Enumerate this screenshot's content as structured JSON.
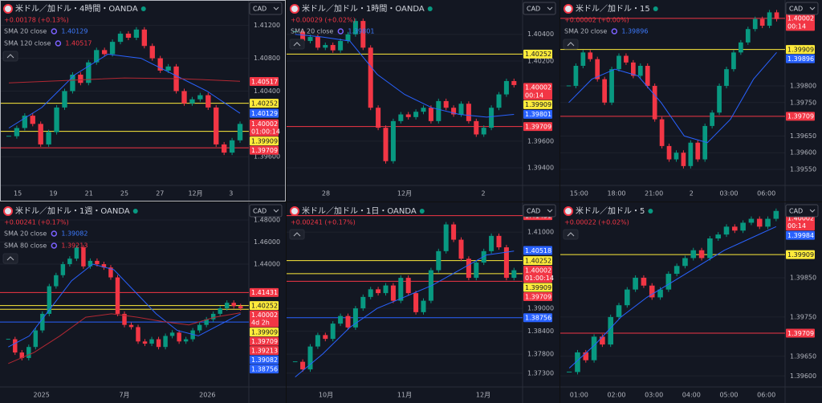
{
  "panels": [
    {
      "title": "米ドル／加ドル・4時間・OANDA",
      "change": "+0.00178 (+0.13%)",
      "currency": "CAD",
      "indicators": [
        {
          "name": "SMA 20 close",
          "value": "1.40129",
          "color": "#2962ff",
          "values": [
            1.3995,
            1.402,
            1.406,
            1.4085,
            1.408,
            1.406,
            1.404,
            1.4013
          ]
        },
        {
          "name": "SMA 120 close",
          "value": "1.40517",
          "color": "#b22833",
          "values": [
            1.405,
            1.4053,
            1.4056,
            1.4055,
            1.4052
          ]
        }
      ],
      "ylim": [
        1.3925,
        1.4151
      ],
      "yticks": [
        {
          "value": 1.412,
          "label": "1.41200"
        },
        {
          "value": 1.408,
          "label": "1.40800"
        },
        {
          "value": 1.404,
          "label": "1.40400"
        },
        {
          "value": 1.396,
          "label": "1.39600"
        }
      ],
      "time_labels": [
        "15",
        "19",
        "21",
        "25",
        "27",
        "12月",
        "3"
      ],
      "candles": [
        1.3985,
        1.3995,
        1.401,
        1.4,
        1.3975,
        1.399,
        1.402,
        1.404,
        1.406,
        1.405,
        1.4075,
        1.409,
        1.4085,
        1.41,
        1.411,
        1.4105,
        1.4115,
        1.4095,
        1.408,
        1.4065,
        1.407,
        1.404,
        1.4025,
        1.403,
        1.4035,
        1.402,
        1.3975,
        1.3965,
        1.398,
        1.4
      ],
      "tags": [
        {
          "value": 1.40517,
          "color": "#f23645"
        },
        {
          "value": 1.40252,
          "color": "#ffeb3b",
          "line": true
        },
        {
          "value": 1.40129,
          "color": "#2962ff"
        },
        {
          "value": 1.40002,
          "color": "#f23645",
          "countdown": "01:00:14"
        },
        {
          "value": 1.39909,
          "color": "#ffeb3b",
          "line": true
        },
        {
          "value": 1.39709,
          "color": "#f23645",
          "line": true
        }
      ]
    },
    {
      "title": "米ドル／加ドル・1時間・OANDA",
      "change": "+0.00029 (+0.02%)",
      "currency": "CAD",
      "indicators": [
        {
          "name": "SMA 20 close",
          "value": "1.39801",
          "color": "#2962ff",
          "values": [
            1.404,
            1.4038,
            1.4035,
            1.401,
            1.3995,
            1.3985,
            1.398,
            1.3978,
            1.398
          ]
        }
      ],
      "ylim": [
        1.39268,
        1.40657
      ],
      "yticks": [
        {
          "value": 1.404,
          "label": "1.40400"
        },
        {
          "value": 1.402,
          "label": "1.40200"
        },
        {
          "value": 1.396,
          "label": "1.39600"
        },
        {
          "value": 1.394,
          "label": "1.39400"
        }
      ],
      "time_labels": [
        "28",
        "12月",
        "2"
      ],
      "candles": [
        1.4042,
        1.4035,
        1.4038,
        1.403,
        1.4032,
        1.4028,
        1.4035,
        1.404,
        1.405,
        1.403,
        1.3985,
        1.397,
        1.3945,
        1.3975,
        1.398,
        1.3978,
        1.3982,
        1.3985,
        1.3975,
        1.399,
        1.3985,
        1.398,
        1.3988,
        1.3975,
        1.3965,
        1.397,
        1.3985,
        1.3995,
        1.4005,
        1.4002
      ],
      "tags": [
        {
          "value": 1.40252,
          "color": "#ffeb3b",
          "line": true
        },
        {
          "value": 1.40002,
          "color": "#f23645",
          "countdown": "00:14"
        },
        {
          "value": 1.39909,
          "color": "#ffeb3b"
        },
        {
          "value": 1.39801,
          "color": "#2962ff"
        },
        {
          "value": 1.39709,
          "color": "#f23645",
          "line": true
        }
      ]
    },
    {
      "title": "米ドル／加ドル・15",
      "change": "+0.00002 (+0.00%)",
      "currency": "CAD",
      "indicators": [
        {
          "name": "SMA 20 close",
          "value": "1.39896",
          "color": "#2962ff",
          "values": [
            1.3975,
            1.3982,
            1.3985,
            1.3983,
            1.3975,
            1.3965,
            1.3963,
            1.397,
            1.3982,
            1.399
          ]
        }
      ],
      "ylim": [
        1.39502,
        1.40057
      ],
      "yticks": [
        {
          "value": 1.398,
          "label": "1.39800"
        },
        {
          "value": 1.3975,
          "label": "1.39750"
        },
        {
          "value": 1.3965,
          "label": "1.39650"
        },
        {
          "value": 1.396,
          "label": "1.39600"
        },
        {
          "value": 1.3955,
          "label": "1.39550"
        }
      ],
      "time_labels": [
        "15:00",
        "18:00",
        "21:00",
        "2",
        "03:00",
        "06:00"
      ],
      "candles": [
        1.398,
        1.3986,
        1.399,
        1.3988,
        1.3982,
        1.3975,
        1.3985,
        1.3989,
        1.3987,
        1.3983,
        1.3986,
        1.398,
        1.397,
        1.3962,
        1.3958,
        1.396,
        1.3956,
        1.3963,
        1.3958,
        1.3968,
        1.3972,
        1.398,
        1.3985,
        1.399,
        1.3993,
        1.3997,
        1.4,
        1.3998,
        1.4002,
        1.4
      ],
      "tags": [
        {
          "value": 1.40002,
          "color": "#f23645",
          "countdown": "00:14",
          "line": true
        },
        {
          "value": 1.39909,
          "color": "#ffeb3b",
          "line": true
        },
        {
          "value": 1.39896,
          "color": "#2962ff"
        },
        {
          "value": 1.39709,
          "color": "#f23645",
          "line": true
        }
      ]
    },
    {
      "title": "米ドル／加ドル・1週・OANDA",
      "change": "+0.00241 (+0.17%)",
      "currency": "CAD",
      "indicators": [
        {
          "name": "SMA 20 close",
          "value": "1.39082",
          "color": "#2962ff",
          "values": [
            1.365,
            1.375,
            1.4,
            1.425,
            1.44,
            1.435,
            1.415,
            1.395,
            1.38,
            1.375,
            1.385,
            1.395
          ]
        },
        {
          "name": "SMA 80 close",
          "value": "1.39213",
          "color": "#b22833",
          "values": [
            1.35,
            1.36,
            1.375,
            1.392,
            1.395,
            1.392,
            1.388,
            1.385,
            1.392,
            1.396
          ]
        }
      ],
      "ylim": [
        1.3288,
        1.496
      ],
      "yticks": [
        {
          "value": 1.48,
          "label": "1.48000"
        },
        {
          "value": 1.46,
          "label": "1.46000"
        },
        {
          "value": 1.44,
          "label": "1.44000"
        }
      ],
      "time_labels": [
        "2025",
        "7月",
        "2026"
      ],
      "candles": [
        1.372,
        1.36,
        1.355,
        1.365,
        1.38,
        1.395,
        1.42,
        1.43,
        1.44,
        1.445,
        1.455,
        1.438,
        1.443,
        1.44,
        1.437,
        1.428,
        1.395,
        1.385,
        1.383,
        1.37,
        1.368,
        1.372,
        1.365,
        1.375,
        1.378,
        1.37,
        1.372,
        1.38,
        1.385,
        1.39,
        1.395,
        1.4,
        1.405,
        1.402,
        1.4
      ],
      "tags": [
        {
          "value": 1.41431,
          "color": "#f23645",
          "line": true
        },
        {
          "value": 1.40252,
          "color": "#ffeb3b",
          "line": true
        },
        {
          "value": 1.40002,
          "color": "#f23645",
          "countdown": "4d 2h"
        },
        {
          "value": 1.39909,
          "color": "#ffeb3b",
          "line": true
        },
        {
          "value": 1.39709,
          "color": "#f23645"
        },
        {
          "value": 1.39213,
          "color": "#f23645"
        },
        {
          "value": 1.39082,
          "color": "#2962ff"
        },
        {
          "value": 1.38756,
          "color": "#2962ff",
          "line": true
        }
      ]
    },
    {
      "title": "米ドル／加ドル・1日・OANDA",
      "change": "+0.00241 (+0.17%)",
      "currency": "CAD",
      "indicators": [
        {
          "color": "#2962ff",
          "values": [
            1.372,
            1.378,
            1.385,
            1.39,
            1.393,
            1.396,
            1.4,
            1.404,
            1.405
          ]
        }
      ],
      "ylim": [
        1.3694,
        1.4178
      ],
      "yticks": [
        {
          "value": 1.41,
          "label": "1.41000"
        },
        {
          "value": 1.39,
          "label": "1.39000"
        },
        {
          "value": 1.384,
          "label": "1.38400"
        },
        {
          "value": 1.378,
          "label": "1.37800"
        },
        {
          "value": 1.373,
          "label": "1.37300"
        }
      ],
      "time_labels": [
        "10月",
        "11月",
        "12月"
      ],
      "candles": [
        1.376,
        1.374,
        1.38,
        1.383,
        1.382,
        1.386,
        1.388,
        1.385,
        1.39,
        1.393,
        1.395,
        1.394,
        1.396,
        1.392,
        1.398,
        1.394,
        1.389,
        1.392,
        1.4,
        1.405,
        1.412,
        1.408,
        1.403,
        1.398,
        1.402,
        1.405,
        1.409,
        1.406,
        1.398,
        1.4
      ],
      "tags": [
        {
          "value": 1.41431,
          "color": "#f23645",
          "line": true
        },
        {
          "value": 1.40518,
          "color": "#2962ff"
        },
        {
          "value": 1.40252,
          "color": "#ffeb3b",
          "line": true
        },
        {
          "value": 1.40002,
          "color": "#f23645",
          "countdown": "01:00:14"
        },
        {
          "value": 1.39909,
          "color": "#ffeb3b",
          "line": true
        },
        {
          "value": 1.39709,
          "color": "#f23645",
          "line": true
        },
        {
          "value": 1.38756,
          "color": "#2962ff",
          "line": true
        }
      ]
    },
    {
      "title": "米ドル／加ドル・5",
      "change": "+0.00022 (+0.02%)",
      "currency": "CAD",
      "indicators": [
        {
          "color": "#2962ff",
          "values": [
            1.3962,
            1.3968,
            1.3975,
            1.398,
            1.3984,
            1.3988,
            1.3992,
            1.3995,
            1.3998
          ]
        }
      ],
      "ylim": [
        1.39572,
        1.40042
      ],
      "yticks": [
        {
          "value": 1.3985,
          "label": "1.39850"
        },
        {
          "value": 1.3975,
          "label": "1.39750"
        },
        {
          "value": 1.3965,
          "label": "1.39650"
        },
        {
          "value": 1.396,
          "label": "1.39600"
        }
      ],
      "time_labels": [
        "01:00",
        "02:00",
        "03:00",
        "04:00",
        "05:00",
        "06:00"
      ],
      "candles": [
        1.3961,
        1.3966,
        1.3964,
        1.397,
        1.3968,
        1.3975,
        1.3978,
        1.3982,
        1.3985,
        1.3983,
        1.398,
        1.3982,
        1.3986,
        1.3988,
        1.399,
        1.3992,
        1.399,
        1.3995,
        1.3996,
        1.3998,
        1.3997,
        1.3999,
        1.4,
        1.3998,
        1.4,
        1.4002
      ],
      "tags": [
        {
          "value": 1.40002,
          "color": "#f23645",
          "countdown": "00:14"
        },
        {
          "value": 1.39984,
          "color": "#2962ff"
        },
        {
          "value": 1.39909,
          "color": "#ffeb3b",
          "line": true
        },
        {
          "value": 1.39709,
          "color": "#f23645",
          "line": true
        }
      ]
    }
  ]
}
